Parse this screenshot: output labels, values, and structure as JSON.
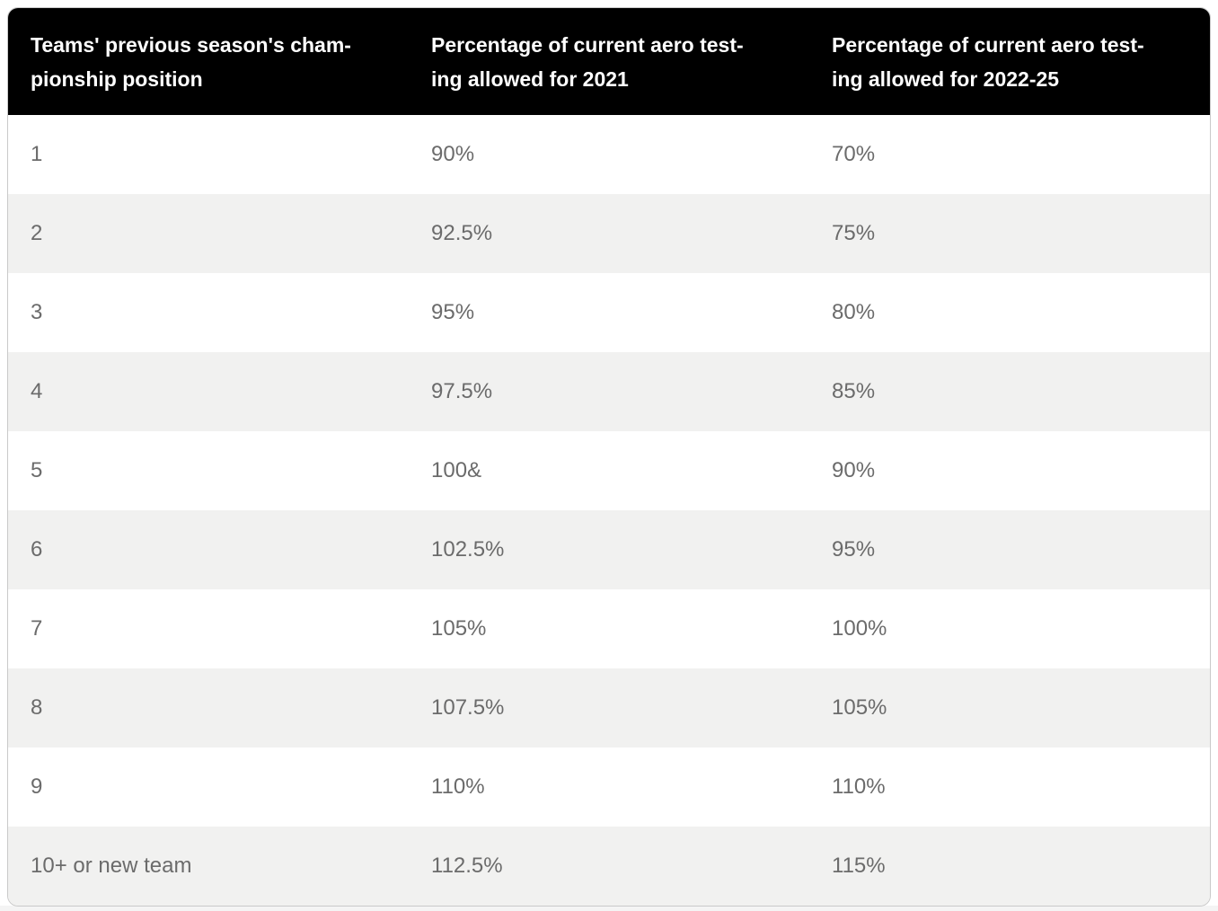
{
  "chart_data": {
    "type": "table",
    "columns": [
      {
        "label": "Teams' previous season's championship position",
        "lines": [
          "Teams' previous season's cham-",
          "pionship position"
        ]
      },
      {
        "label": "Percentage of current aero testing allowed for 2021",
        "lines": [
          "Percentage of current aero test-",
          "ing allowed for 2021"
        ]
      },
      {
        "label": "Percentage of current aero testing allowed for 2022-25",
        "lines": [
          "Percentage of current aero test-",
          "ing allowed for 2022-25"
        ]
      }
    ],
    "rows": [
      [
        "1",
        "90%",
        "70%"
      ],
      [
        "2",
        "92.5%",
        "75%"
      ],
      [
        "3",
        "95%",
        "80%"
      ],
      [
        "4",
        "97.5%",
        "85%"
      ],
      [
        "5",
        "100&",
        "90%"
      ],
      [
        "6",
        "102.5%",
        "95%"
      ],
      [
        "7",
        "105%",
        "100%"
      ],
      [
        "8",
        "107.5%",
        "105%"
      ],
      [
        "9",
        "110%",
        "110%"
      ],
      [
        "10+ or new team",
        "112.5%",
        "115%"
      ]
    ]
  },
  "colors": {
    "header_bg": "#000000",
    "header_text": "#ffffff",
    "row_bg": "#ffffff",
    "row_alt_bg": "#f1f1f0",
    "body_text": "#6b6b6b",
    "border": "#c9c9c9",
    "page_bg": "#ffffff",
    "below_table_bg": "#f4f4f4"
  }
}
